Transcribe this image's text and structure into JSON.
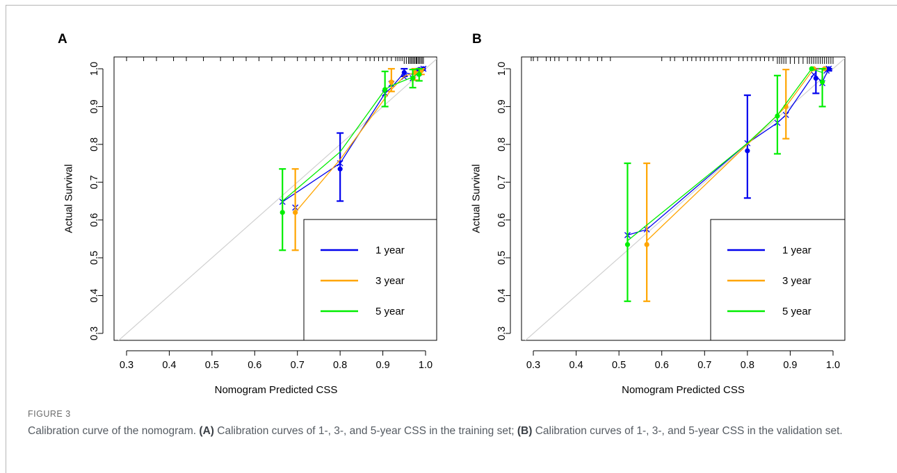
{
  "colors": {
    "one_year": "#0000ee",
    "three_year": "#ffa500",
    "five_year": "#00ee00",
    "ideal_line": "#d0d0d0",
    "rug": "#000000"
  },
  "caption": {
    "label": "FIGURE 3",
    "title": "Calibration curve of the nomogram.",
    "a_tag": "(A)",
    "a_text": "Calibration curves of 1-, 3-, and 5-year CSS in the training set;",
    "b_tag": "(B)",
    "b_text": "Calibration curves of 1-, 3-, and 5-year CSS in the validation set."
  },
  "chart_data": [
    {
      "panel": "A",
      "type": "line",
      "xlabel": "Nomogram  Predicted CSS",
      "ylabel": "Actual Survival",
      "xlim": [
        0.28,
        1.02
      ],
      "ylim": [
        0.28,
        1.03
      ],
      "x_ticks": [
        "0.3",
        "0.4",
        "0.5",
        "0.6",
        "0.7",
        "0.8",
        "0.9",
        "1.0"
      ],
      "y_ticks": [
        "0.3",
        "0.4",
        "0.5",
        "0.6",
        "0.7",
        "0.8",
        "0.9",
        "1.0"
      ],
      "grid": false,
      "legend_position": "bottom-right",
      "ideal_line": true,
      "series": [
        {
          "name": "1 year",
          "color_key": "one_year",
          "points": [
            {
              "x": 0.8,
              "y": 0.735,
              "lo": 0.65,
              "hi": 0.83
            },
            {
              "x": 0.95,
              "y": 0.99,
              "lo": 0.98,
              "hi": 1.0
            },
            {
              "x": 0.985,
              "y": 0.998,
              "lo": 0.993,
              "hi": 1.0
            },
            {
              "x": 0.995,
              "y": 1.0,
              "lo": 1.0,
              "hi": 1.0
            }
          ],
          "line": [
            [
              0.665,
              0.648
            ],
            [
              0.8,
              0.75
            ],
            [
              0.905,
              0.935
            ],
            [
              0.92,
              0.95
            ],
            [
              0.95,
              0.99
            ],
            [
              0.97,
              0.985
            ],
            [
              0.985,
              0.99
            ],
            [
              0.995,
              1.0
            ]
          ],
          "crosses": [
            [
              0.665,
              0.648
            ],
            [
              0.695,
              0.633
            ],
            [
              0.8,
              0.75
            ],
            [
              0.905,
              0.935
            ],
            [
              0.92,
              0.96
            ],
            [
              0.95,
              0.978
            ],
            [
              0.97,
              0.975
            ],
            [
              0.985,
              0.99
            ],
            [
              0.995,
              1.0
            ]
          ]
        },
        {
          "name": "3 year",
          "color_key": "three_year",
          "points": [
            {
              "x": 0.695,
              "y": 0.62,
              "lo": 0.52,
              "hi": 0.735
            },
            {
              "x": 0.92,
              "y": 0.965,
              "lo": 0.94,
              "hi": 1.0
            },
            {
              "x": 0.975,
              "y": 0.99,
              "lo": 0.97,
              "hi": 1.0
            },
            {
              "x": 0.99,
              "y": 0.995,
              "lo": 0.985,
              "hi": 1.0
            }
          ],
          "line": [
            [
              0.695,
              0.62
            ],
            [
              0.8,
              0.76
            ],
            [
              0.92,
              0.945
            ],
            [
              0.95,
              0.98
            ],
            [
              0.975,
              0.99
            ],
            [
              0.99,
              0.995
            ]
          ],
          "crosses": []
        },
        {
          "name": "5 year",
          "color_key": "five_year",
          "points": [
            {
              "x": 0.665,
              "y": 0.62,
              "lo": 0.52,
              "hi": 0.735
            },
            {
              "x": 0.905,
              "y": 0.945,
              "lo": 0.9,
              "hi": 0.993
            },
            {
              "x": 0.97,
              "y": 0.975,
              "lo": 0.95,
              "hi": 0.998
            },
            {
              "x": 0.985,
              "y": 0.985,
              "lo": 0.968,
              "hi": 1.0
            }
          ],
          "line": [
            [
              0.665,
              0.65
            ],
            [
              0.8,
              0.78
            ],
            [
              0.905,
              0.945
            ],
            [
              0.92,
              0.955
            ],
            [
              0.97,
              0.978
            ],
            [
              0.985,
              0.99
            ]
          ],
          "crosses": []
        }
      ],
      "rug": {
        "placement": "top",
        "x": [
          0.3,
          0.34,
          0.37,
          0.41,
          0.44,
          0.48,
          0.52,
          0.55,
          0.58,
          0.61,
          0.64,
          0.67,
          0.7,
          0.72,
          0.74,
          0.76,
          0.78,
          0.8,
          0.82,
          0.84,
          0.86,
          0.87,
          0.88,
          0.89,
          0.9,
          0.91,
          0.92,
          0.93,
          0.935,
          0.94,
          0.945,
          0.95,
          0.955,
          0.96,
          0.963,
          0.966,
          0.969,
          0.972,
          0.975,
          0.978,
          0.98,
          0.983,
          0.986,
          0.989,
          0.992,
          0.995
        ],
        "tall_from": 0.95
      }
    },
    {
      "panel": "B",
      "type": "line",
      "xlabel": "Nomogram  Predicted CSS",
      "ylabel": "Actual Survival",
      "xlim": [
        0.28,
        1.02
      ],
      "ylim": [
        0.28,
        1.03
      ],
      "x_ticks": [
        "0.3",
        "0.4",
        "0.5",
        "0.6",
        "0.7",
        "0.8",
        "0.9",
        "1.0"
      ],
      "y_ticks": [
        "0.3",
        "0.4",
        "0.5",
        "0.6",
        "0.7",
        "0.8",
        "0.9",
        "1.0"
      ],
      "grid": false,
      "legend_position": "bottom-right",
      "ideal_line": true,
      "series": [
        {
          "name": "1 year",
          "color_key": "one_year",
          "points": [
            {
              "x": 0.8,
              "y": 0.783,
              "lo": 0.658,
              "hi": 0.93
            },
            {
              "x": 0.96,
              "y": 0.975,
              "lo": 0.935,
              "hi": 1.0
            },
            {
              "x": 0.99,
              "y": 1.0,
              "lo": 0.995,
              "hi": 1.0
            }
          ],
          "line": [
            [
              0.52,
              0.56
            ],
            [
              0.565,
              0.575
            ],
            [
              0.8,
              0.803
            ],
            [
              0.87,
              0.857
            ],
            [
              0.89,
              0.878
            ],
            [
              0.955,
              0.985
            ],
            [
              0.975,
              0.965
            ],
            [
              0.99,
              1.0
            ]
          ],
          "crosses": [
            [
              0.52,
              0.56
            ],
            [
              0.565,
              0.575
            ],
            [
              0.8,
              0.803
            ],
            [
              0.87,
              0.857
            ],
            [
              0.89,
              0.878
            ],
            [
              0.955,
              0.985
            ],
            [
              0.975,
              0.962
            ],
            [
              0.985,
              0.995
            ],
            [
              0.99,
              1.0
            ]
          ]
        },
        {
          "name": "3 year",
          "color_key": "three_year",
          "points": [
            {
              "x": 0.565,
              "y": 0.535,
              "lo": 0.385,
              "hi": 0.75
            },
            {
              "x": 0.89,
              "y": 0.9,
              "lo": 0.815,
              "hi": 0.998
            },
            {
              "x": 0.955,
              "y": 1.0,
              "lo": 1.0,
              "hi": 1.0
            },
            {
              "x": 0.98,
              "y": 1.0,
              "lo": 1.0,
              "hi": 1.0
            }
          ],
          "line": [
            [
              0.565,
              0.545
            ],
            [
              0.8,
              0.8
            ],
            [
              0.89,
              0.9
            ],
            [
              0.955,
              1.0
            ],
            [
              0.98,
              1.0
            ]
          ],
          "crosses": []
        },
        {
          "name": "5 year",
          "color_key": "five_year",
          "points": [
            {
              "x": 0.52,
              "y": 0.535,
              "lo": 0.385,
              "hi": 0.75
            },
            {
              "x": 0.87,
              "y": 0.875,
              "lo": 0.775,
              "hi": 0.982
            },
            {
              "x": 0.95,
              "y": 1.0,
              "lo": 1.0,
              "hi": 1.0
            },
            {
              "x": 0.975,
              "y": 0.965,
              "lo": 0.9,
              "hi": 1.0
            }
          ],
          "line": [
            [
              0.52,
              0.545
            ],
            [
              0.8,
              0.803
            ],
            [
              0.87,
              0.877
            ],
            [
              0.95,
              1.0
            ],
            [
              0.975,
              0.99
            ]
          ],
          "crosses": []
        }
      ],
      "rug": {
        "placement": "top",
        "x": [
          0.295,
          0.3,
          0.31,
          0.33,
          0.34,
          0.35,
          0.36,
          0.38,
          0.4,
          0.41,
          0.43,
          0.45,
          0.46,
          0.48,
          0.6,
          0.62,
          0.63,
          0.65,
          0.66,
          0.67,
          0.68,
          0.69,
          0.7,
          0.71,
          0.72,
          0.73,
          0.74,
          0.75,
          0.76,
          0.78,
          0.79,
          0.8,
          0.81,
          0.82,
          0.83,
          0.84,
          0.85,
          0.86,
          0.87,
          0.875,
          0.88,
          0.885,
          0.89,
          0.9,
          0.91,
          0.92,
          0.93,
          0.94,
          0.945,
          0.95,
          0.955,
          0.96,
          0.965,
          0.97,
          0.975,
          0.98,
          0.985,
          0.99,
          0.995,
          1.0
        ],
        "tall_from": 0.87
      }
    }
  ]
}
